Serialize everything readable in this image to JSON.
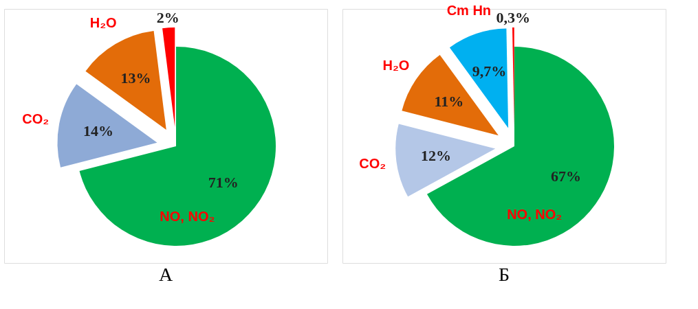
{
  "chart_data": [
    {
      "type": "pie",
      "title": "А",
      "categories": [
        "NO, NO₂",
        "CO₂",
        "H₂O",
        null
      ],
      "values": [
        71,
        14,
        13,
        2
      ],
      "colors": [
        "#00b050",
        "#8eaad6",
        "#e36c09",
        "#ff0000"
      ],
      "value_labels": [
        "71%",
        "14%",
        "13%",
        "2%"
      ]
    },
    {
      "type": "pie",
      "title": "Б",
      "categories": [
        "NO, NO₂",
        "CO₂",
        "H₂O",
        "Cm Hn",
        null
      ],
      "values": [
        67,
        12,
        11,
        9.7,
        0.3
      ],
      "colors": [
        "#00b050",
        "#b4c7e7",
        "#e36c09",
        "#00b0f0",
        "#ff0000"
      ],
      "value_labels": [
        "67%",
        "12%",
        "11%",
        "9,7%",
        "0,3%"
      ]
    }
  ]
}
